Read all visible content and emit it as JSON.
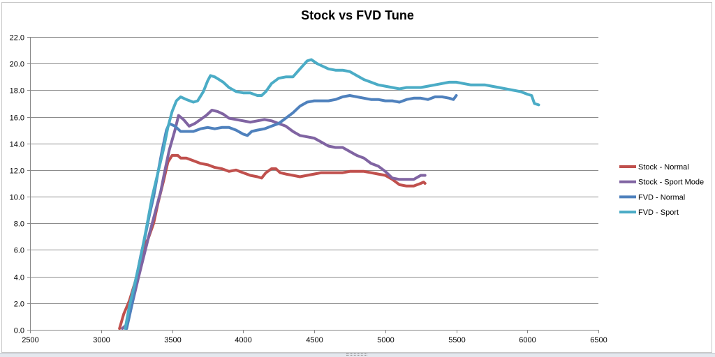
{
  "chart_data": {
    "type": "line",
    "title": "Stock vs FVD Tune",
    "xlabel": "",
    "ylabel": "",
    "xlim": [
      2500,
      6500
    ],
    "ylim": [
      0,
      22
    ],
    "x_ticks": [
      2500,
      3000,
      3500,
      4000,
      4500,
      5000,
      5500,
      6000,
      6500
    ],
    "y_ticks": [
      "0.0",
      "2.0",
      "4.0",
      "6.0",
      "8.0",
      "10.0",
      "12.0",
      "14.0",
      "16.0",
      "18.0",
      "20.0",
      "22.0"
    ],
    "grid": "horizontal",
    "legend_position": "right",
    "series": [
      {
        "name": "Stock - Normal",
        "color": "#c0504d",
        "points": [
          [
            3130,
            0.1
          ],
          [
            3160,
            1.2
          ],
          [
            3200,
            2.2
          ],
          [
            3240,
            3.6
          ],
          [
            3280,
            5.2
          ],
          [
            3300,
            6.3
          ],
          [
            3330,
            6.8
          ],
          [
            3370,
            8.0
          ],
          [
            3400,
            9.5
          ],
          [
            3440,
            11.2
          ],
          [
            3470,
            12.6
          ],
          [
            3500,
            13.1
          ],
          [
            3540,
            13.1
          ],
          [
            3560,
            12.9
          ],
          [
            3600,
            12.9
          ],
          [
            3650,
            12.7
          ],
          [
            3700,
            12.5
          ],
          [
            3750,
            12.4
          ],
          [
            3800,
            12.2
          ],
          [
            3850,
            12.1
          ],
          [
            3900,
            11.9
          ],
          [
            3950,
            12.0
          ],
          [
            4000,
            11.8
          ],
          [
            4050,
            11.6
          ],
          [
            4100,
            11.5
          ],
          [
            4130,
            11.4
          ],
          [
            4160,
            11.8
          ],
          [
            4200,
            12.1
          ],
          [
            4230,
            12.1
          ],
          [
            4260,
            11.8
          ],
          [
            4300,
            11.7
          ],
          [
            4350,
            11.6
          ],
          [
            4400,
            11.5
          ],
          [
            4450,
            11.6
          ],
          [
            4500,
            11.7
          ],
          [
            4550,
            11.8
          ],
          [
            4600,
            11.8
          ],
          [
            4650,
            11.8
          ],
          [
            4700,
            11.8
          ],
          [
            4750,
            11.9
          ],
          [
            4800,
            11.9
          ],
          [
            4850,
            11.9
          ],
          [
            4900,
            11.8
          ],
          [
            4950,
            11.7
          ],
          [
            5000,
            11.6
          ],
          [
            5050,
            11.3
          ],
          [
            5100,
            10.9
          ],
          [
            5150,
            10.8
          ],
          [
            5200,
            10.8
          ],
          [
            5250,
            11.0
          ],
          [
            5270,
            11.1
          ],
          [
            5280,
            11.0
          ]
        ]
      },
      {
        "name": "Stock - Sport Mode",
        "color": "#8064a2",
        "points": [
          [
            3150,
            0.1
          ],
          [
            3180,
            0.4
          ],
          [
            3220,
            2.0
          ],
          [
            3260,
            3.8
          ],
          [
            3300,
            5.5
          ],
          [
            3340,
            7.2
          ],
          [
            3380,
            8.8
          ],
          [
            3420,
            10.4
          ],
          [
            3450,
            12.0
          ],
          [
            3480,
            13.5
          ],
          [
            3520,
            15.0
          ],
          [
            3545,
            16.1
          ],
          [
            3580,
            15.8
          ],
          [
            3620,
            15.3
          ],
          [
            3660,
            15.5
          ],
          [
            3700,
            15.8
          ],
          [
            3740,
            16.1
          ],
          [
            3780,
            16.5
          ],
          [
            3820,
            16.4
          ],
          [
            3860,
            16.2
          ],
          [
            3900,
            15.9
          ],
          [
            3950,
            15.8
          ],
          [
            4000,
            15.7
          ],
          [
            4050,
            15.6
          ],
          [
            4100,
            15.7
          ],
          [
            4150,
            15.8
          ],
          [
            4200,
            15.7
          ],
          [
            4250,
            15.5
          ],
          [
            4300,
            15.3
          ],
          [
            4350,
            14.9
          ],
          [
            4400,
            14.6
          ],
          [
            4450,
            14.5
          ],
          [
            4500,
            14.4
          ],
          [
            4550,
            14.1
          ],
          [
            4600,
            13.8
          ],
          [
            4650,
            13.7
          ],
          [
            4700,
            13.7
          ],
          [
            4750,
            13.4
          ],
          [
            4800,
            13.1
          ],
          [
            4850,
            12.9
          ],
          [
            4900,
            12.5
          ],
          [
            4950,
            12.3
          ],
          [
            5000,
            11.9
          ],
          [
            5050,
            11.4
          ],
          [
            5100,
            11.3
          ],
          [
            5150,
            11.3
          ],
          [
            5200,
            11.3
          ],
          [
            5250,
            11.6
          ],
          [
            5280,
            11.6
          ]
        ]
      },
      {
        "name": "FVD - Normal",
        "color": "#4f81bd",
        "points": [
          [
            3180,
            0.1
          ],
          [
            3220,
            2.0
          ],
          [
            3250,
            4.0
          ],
          [
            3280,
            5.6
          ],
          [
            3310,
            7.0
          ],
          [
            3340,
            8.6
          ],
          [
            3370,
            10.0
          ],
          [
            3400,
            11.8
          ],
          [
            3430,
            13.5
          ],
          [
            3460,
            15.0
          ],
          [
            3480,
            15.5
          ],
          [
            3520,
            15.3
          ],
          [
            3560,
            14.9
          ],
          [
            3600,
            14.9
          ],
          [
            3650,
            14.9
          ],
          [
            3700,
            15.1
          ],
          [
            3750,
            15.2
          ],
          [
            3800,
            15.1
          ],
          [
            3850,
            15.2
          ],
          [
            3900,
            15.2
          ],
          [
            3950,
            15.0
          ],
          [
            4000,
            14.7
          ],
          [
            4030,
            14.6
          ],
          [
            4060,
            14.9
          ],
          [
            4100,
            15.0
          ],
          [
            4150,
            15.1
          ],
          [
            4200,
            15.3
          ],
          [
            4250,
            15.5
          ],
          [
            4300,
            15.9
          ],
          [
            4350,
            16.3
          ],
          [
            4400,
            16.8
          ],
          [
            4450,
            17.1
          ],
          [
            4500,
            17.2
          ],
          [
            4550,
            17.2
          ],
          [
            4600,
            17.2
          ],
          [
            4650,
            17.3
          ],
          [
            4700,
            17.5
          ],
          [
            4750,
            17.6
          ],
          [
            4800,
            17.5
          ],
          [
            4850,
            17.4
          ],
          [
            4900,
            17.3
          ],
          [
            4950,
            17.3
          ],
          [
            5000,
            17.2
          ],
          [
            5050,
            17.2
          ],
          [
            5100,
            17.1
          ],
          [
            5150,
            17.3
          ],
          [
            5200,
            17.4
          ],
          [
            5250,
            17.4
          ],
          [
            5300,
            17.3
          ],
          [
            5350,
            17.5
          ],
          [
            5400,
            17.5
          ],
          [
            5450,
            17.4
          ],
          [
            5480,
            17.3
          ],
          [
            5500,
            17.6
          ]
        ]
      },
      {
        "name": "FVD - Sport",
        "color": "#4bacc6",
        "points": [
          [
            3170,
            0.1
          ],
          [
            3200,
            1.8
          ],
          [
            3240,
            3.6
          ],
          [
            3280,
            5.5
          ],
          [
            3320,
            7.7
          ],
          [
            3360,
            10.0
          ],
          [
            3400,
            11.8
          ],
          [
            3440,
            13.6
          ],
          [
            3470,
            15.2
          ],
          [
            3500,
            16.4
          ],
          [
            3530,
            17.2
          ],
          [
            3560,
            17.5
          ],
          [
            3600,
            17.3
          ],
          [
            3650,
            17.1
          ],
          [
            3680,
            17.2
          ],
          [
            3720,
            17.9
          ],
          [
            3750,
            18.7
          ],
          [
            3770,
            19.1
          ],
          [
            3800,
            19.0
          ],
          [
            3830,
            18.8
          ],
          [
            3860,
            18.6
          ],
          [
            3900,
            18.2
          ],
          [
            3950,
            17.9
          ],
          [
            4000,
            17.8
          ],
          [
            4050,
            17.8
          ],
          [
            4100,
            17.6
          ],
          [
            4130,
            17.6
          ],
          [
            4160,
            17.9
          ],
          [
            4200,
            18.5
          ],
          [
            4250,
            18.9
          ],
          [
            4300,
            19.0
          ],
          [
            4350,
            19.0
          ],
          [
            4400,
            19.6
          ],
          [
            4450,
            20.2
          ],
          [
            4480,
            20.3
          ],
          [
            4520,
            20.0
          ],
          [
            4560,
            19.8
          ],
          [
            4600,
            19.6
          ],
          [
            4650,
            19.5
          ],
          [
            4700,
            19.5
          ],
          [
            4750,
            19.4
          ],
          [
            4800,
            19.1
          ],
          [
            4850,
            18.8
          ],
          [
            4900,
            18.6
          ],
          [
            4950,
            18.4
          ],
          [
            5000,
            18.3
          ],
          [
            5050,
            18.2
          ],
          [
            5100,
            18.1
          ],
          [
            5150,
            18.2
          ],
          [
            5200,
            18.2
          ],
          [
            5250,
            18.2
          ],
          [
            5300,
            18.3
          ],
          [
            5350,
            18.4
          ],
          [
            5400,
            18.5
          ],
          [
            5450,
            18.6
          ],
          [
            5500,
            18.6
          ],
          [
            5550,
            18.5
          ],
          [
            5600,
            18.4
          ],
          [
            5650,
            18.4
          ],
          [
            5700,
            18.4
          ],
          [
            5750,
            18.3
          ],
          [
            5800,
            18.2
          ],
          [
            5850,
            18.1
          ],
          [
            5900,
            18.0
          ],
          [
            5950,
            17.9
          ],
          [
            6000,
            17.7
          ],
          [
            6030,
            17.6
          ],
          [
            6050,
            17.0
          ],
          [
            6080,
            16.9
          ]
        ]
      }
    ]
  }
}
